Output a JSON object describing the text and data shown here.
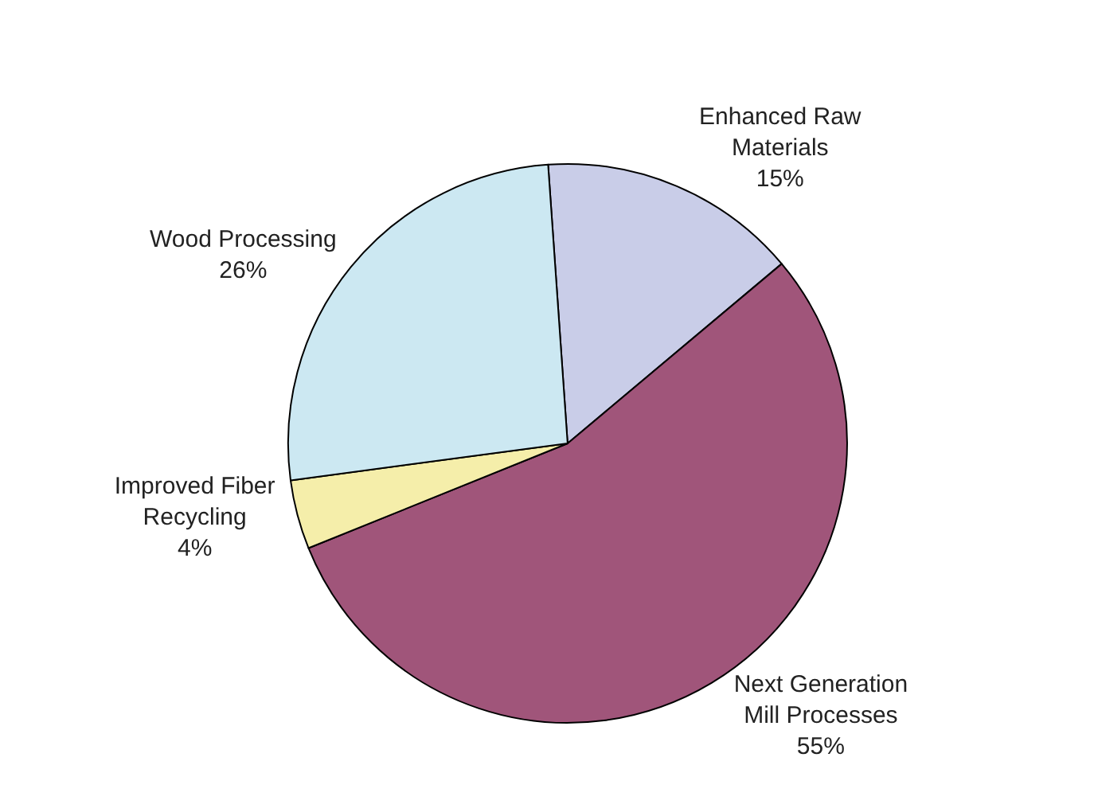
{
  "chart_data": {
    "type": "pie",
    "categories": [
      "Enhanced Raw Materials",
      "Next Generation Mill Processes",
      "Improved Fiber Recycling",
      "Wood Processing"
    ],
    "values": [
      15,
      55,
      4,
      26
    ],
    "value_labels": [
      "15%",
      "55%",
      "4%",
      "26%"
    ],
    "colors": [
      "#c9cde8",
      "#a0557a",
      "#f5eeaa",
      "#cce8f2"
    ],
    "legend": false
  }
}
